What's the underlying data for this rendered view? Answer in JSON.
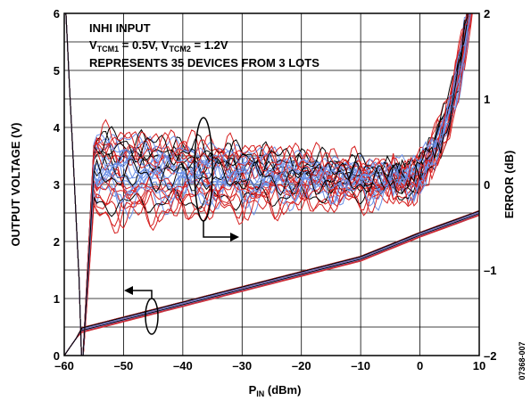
{
  "chart_data": {
    "type": "line",
    "xlabel_main": "P",
    "xlabel_sub": "IN",
    "xlabel_unit": " (dBm)",
    "ylabel_left": "OUTPUT VOLTAGE (V)",
    "ylabel_right": "ERROR (dB)",
    "xlim": [
      -60,
      10
    ],
    "ylim_left": [
      0,
      6
    ],
    "ylim_right": [
      -2,
      2
    ],
    "x_ticks": [
      -60,
      -50,
      -40,
      -30,
      -20,
      -10,
      0,
      10
    ],
    "x_tick_labels": [
      "–60",
      "–50",
      "–40",
      "–30",
      "–20",
      "–10",
      "0",
      "10"
    ],
    "y_left_ticks": [
      0,
      1,
      2,
      3,
      4,
      5,
      6
    ],
    "y_left_tick_labels": [
      "0",
      "1",
      "2",
      "3",
      "4",
      "5",
      "6"
    ],
    "y_right_ticks": [
      -2,
      -1,
      0,
      1,
      2
    ],
    "y_right_tick_labels": [
      "–2",
      "–1",
      "0",
      "1",
      "2"
    ],
    "grid": true,
    "annotations": {
      "line1": "INHI INPUT",
      "line2_v1": "V",
      "line2_s1": "TCM1",
      "line2_mid": " = 0.5V, V",
      "line2_s2": "TCM2",
      "line2_end": " = 1.2V",
      "line3": "REPRESENTS 35 DEVICES FROM 3 LOTS"
    },
    "figure_id": "07368-007",
    "series_colors": [
      "#d62020",
      "#6b8fe6",
      "#000000"
    ],
    "voltage_curve": {
      "x": [
        -57,
        -10,
        0,
        10
      ],
      "y": [
        0.45,
        1.7,
        2.12,
        2.5
      ]
    },
    "error_band_center_db": 0,
    "error_band_spread_db": [
      -0.4,
      0.6
    ]
  }
}
